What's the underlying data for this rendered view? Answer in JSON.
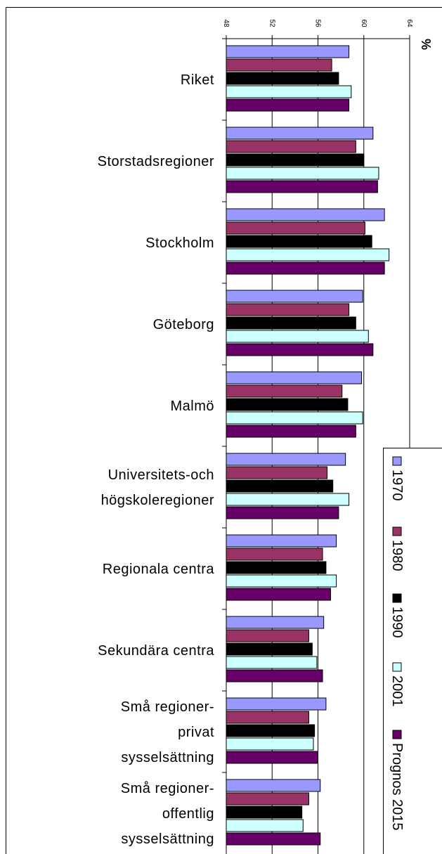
{
  "chart_data": {
    "type": "bar",
    "orientation": "horizontal",
    "value_axis_label": "%",
    "categories": [
      [
        "Riket"
      ],
      [
        "Storstadsregioner"
      ],
      [
        "Stockholm"
      ],
      [
        "Göteborg"
      ],
      [
        "Malmö"
      ],
      [
        "Universitets-och",
        "högskoleregioner"
      ],
      [
        "Regionala centra"
      ],
      [
        "Sekundära centra"
      ],
      [
        "Små regioner-",
        "privat",
        "sysselsättning"
      ],
      [
        "Små regioner-",
        "offentlig",
        "sysselsättning"
      ]
    ],
    "series": [
      {
        "name": "1970",
        "color": "#9999ff",
        "values": [
          58.7,
          60.8,
          61.8,
          59.9,
          59.8,
          58.4,
          57.6,
          56.5,
          56.7,
          56.2
        ]
      },
      {
        "name": "1980",
        "color": "#993366",
        "values": [
          57.2,
          59.3,
          60.1,
          58.7,
          58.1,
          56.8,
          56.4,
          55.2,
          55.2,
          55.2
        ]
      },
      {
        "name": "1990",
        "color": "#000000",
        "values": [
          57.8,
          60.0,
          60.7,
          59.3,
          58.6,
          57.3,
          56.7,
          55.5,
          55.7,
          54.6
        ]
      },
      {
        "name": "2001",
        "color": "#ccffff",
        "values": [
          58.9,
          61.3,
          62.2,
          60.4,
          59.9,
          58.7,
          57.6,
          55.9,
          55.6,
          54.7
        ]
      },
      {
        "name": "Prognos 2015",
        "color": "#660066",
        "values": [
          58.7,
          61.2,
          61.8,
          60.8,
          59.3,
          57.8,
          57.1,
          56.4,
          56.0,
          56.2
        ]
      }
    ],
    "xlim": [
      48,
      64
    ],
    "xticks": [
      48,
      52,
      56,
      60,
      64
    ],
    "grid": true,
    "legend": "bottom-right"
  }
}
